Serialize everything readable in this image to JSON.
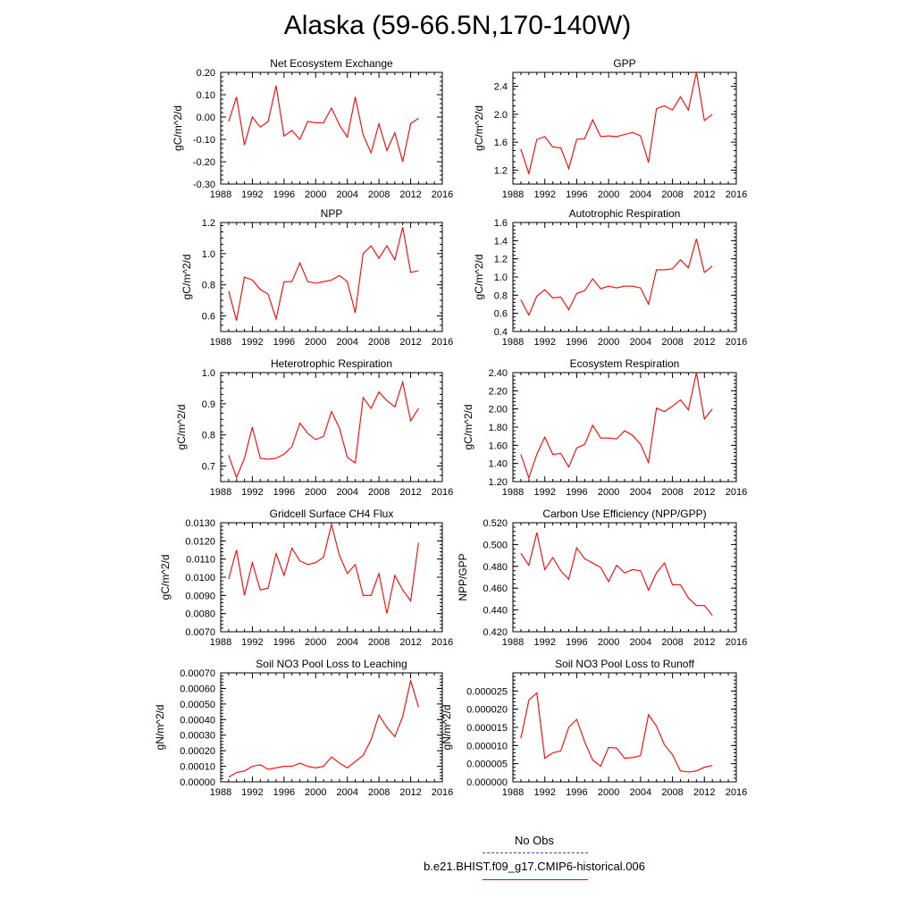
{
  "title": "Alaska (59-66.5N,170-140W)",
  "colors": {
    "series": "#ff0000",
    "obs": "#4444cc",
    "axis": "#000000"
  },
  "legend": {
    "obs_label": "No Obs",
    "model_label": "b.e21.BHIST.f09_g17.CMIP6-historical.006"
  },
  "chart_data": [
    {
      "type": "line",
      "title": "Net Ecosystem Exchange",
      "ylabel": "gC/m^2/d",
      "xlim": [
        1988,
        2016
      ],
      "xticks": [
        1988,
        1992,
        1996,
        2000,
        2004,
        2008,
        2012,
        2016
      ],
      "ylim": [
        -0.3,
        0.2
      ],
      "yticks": [
        "-0.30",
        "-0.20",
        "-0.10",
        "0.00",
        "0.10",
        "0.20"
      ],
      "x": [
        1989,
        1990,
        1991,
        1992,
        1993,
        1994,
        1995,
        1996,
        1997,
        1998,
        1999,
        2000,
        2001,
        2002,
        2003,
        2004,
        2005,
        2006,
        2007,
        2008,
        2009,
        2010,
        2011,
        2012,
        2013
      ],
      "values": [
        -0.02,
        0.09,
        -0.125,
        0.0,
        -0.045,
        -0.02,
        0.14,
        -0.085,
        -0.06,
        -0.1,
        -0.02,
        -0.025,
        -0.025,
        0.04,
        -0.035,
        -0.09,
        0.09,
        -0.08,
        -0.16,
        -0.03,
        -0.15,
        -0.07,
        -0.2,
        -0.03,
        -0.005
      ]
    },
    {
      "type": "line",
      "title": "GPP",
      "ylabel": "gC/m^2/d",
      "xlim": [
        1988,
        2016
      ],
      "xticks": [
        1988,
        1992,
        1996,
        2000,
        2004,
        2008,
        2012,
        2016
      ],
      "ylim": [
        1.0,
        2.6
      ],
      "yticks": [
        "1.2",
        "1.6",
        "2.0",
        "2.4"
      ],
      "x": [
        1989,
        1990,
        1991,
        1992,
        1993,
        1994,
        1995,
        1996,
        1997,
        1998,
        1999,
        2000,
        2001,
        2002,
        2003,
        2004,
        2005,
        2006,
        2007,
        2008,
        2009,
        2010,
        2011,
        2012,
        2013
      ],
      "values": [
        1.5,
        1.15,
        1.64,
        1.68,
        1.53,
        1.52,
        1.22,
        1.64,
        1.65,
        1.92,
        1.68,
        1.69,
        1.68,
        1.71,
        1.74,
        1.69,
        1.31,
        2.08,
        2.12,
        2.06,
        2.25,
        2.06,
        2.6,
        1.91,
        2.0
      ]
    },
    {
      "type": "line",
      "title": "NPP",
      "ylabel": "gC/m^2/d",
      "xlim": [
        1988,
        2016
      ],
      "xticks": [
        1988,
        1992,
        1996,
        2000,
        2004,
        2008,
        2012,
        2016
      ],
      "ylim": [
        0.5,
        1.2
      ],
      "yticks": [
        "0.6",
        "0.8",
        "1.0",
        "1.2"
      ],
      "x": [
        1989,
        1990,
        1991,
        1992,
        1993,
        1994,
        1995,
        1996,
        1997,
        1998,
        1999,
        2000,
        2001,
        2002,
        2003,
        2004,
        2005,
        2006,
        2007,
        2008,
        2009,
        2010,
        2011,
        2012,
        2013
      ],
      "values": [
        0.76,
        0.57,
        0.85,
        0.83,
        0.77,
        0.74,
        0.58,
        0.82,
        0.82,
        0.94,
        0.82,
        0.81,
        0.82,
        0.83,
        0.86,
        0.82,
        0.62,
        1.0,
        1.05,
        0.97,
        1.05,
        0.96,
        1.17,
        0.88,
        0.89
      ]
    },
    {
      "type": "line",
      "title": "Autotrophic Respiration",
      "ylabel": "gC/m^2/d",
      "xlim": [
        1988,
        2016
      ],
      "xticks": [
        1988,
        1992,
        1996,
        2000,
        2004,
        2008,
        2012,
        2016
      ],
      "ylim": [
        0.4,
        1.6
      ],
      "yticks": [
        "0.4",
        "0.6",
        "0.8",
        "1.0",
        "1.2",
        "1.4",
        "1.6"
      ],
      "x": [
        1989,
        1990,
        1991,
        1992,
        1993,
        1994,
        1995,
        1996,
        1997,
        1998,
        1999,
        2000,
        2001,
        2002,
        2003,
        2004,
        2005,
        2006,
        2007,
        2008,
        2009,
        2010,
        2011,
        2012,
        2013
      ],
      "values": [
        0.75,
        0.58,
        0.79,
        0.86,
        0.77,
        0.78,
        0.64,
        0.82,
        0.85,
        0.98,
        0.87,
        0.9,
        0.88,
        0.9,
        0.9,
        0.88,
        0.7,
        1.08,
        1.08,
        1.09,
        1.19,
        1.1,
        1.42,
        1.05,
        1.12
      ]
    },
    {
      "type": "line",
      "title": "Heterotrophic Respiration",
      "ylabel": "gC/m^2/d",
      "xlim": [
        1988,
        2016
      ],
      "xticks": [
        1988,
        1992,
        1996,
        2000,
        2004,
        2008,
        2012,
        2016
      ],
      "ylim": [
        0.65,
        1.0
      ],
      "yticks": [
        "0.7",
        "0.8",
        "0.9",
        "1.0"
      ],
      "x": [
        1989,
        1990,
        1991,
        1992,
        1993,
        1994,
        1995,
        1996,
        1997,
        1998,
        1999,
        2000,
        2001,
        2002,
        2003,
        2004,
        2005,
        2006,
        2007,
        2008,
        2009,
        2010,
        2011,
        2012,
        2013
      ],
      "values": [
        0.735,
        0.663,
        0.725,
        0.825,
        0.725,
        0.722,
        0.725,
        0.738,
        0.762,
        0.838,
        0.805,
        0.785,
        0.795,
        0.875,
        0.822,
        0.728,
        0.71,
        0.92,
        0.885,
        0.938,
        0.91,
        0.89,
        0.97,
        0.845,
        0.885
      ]
    },
    {
      "type": "line",
      "title": "Ecosystem Respiration",
      "ylabel": "gC/m^2/d",
      "xlim": [
        1988,
        2016
      ],
      "xticks": [
        1988,
        1992,
        1996,
        2000,
        2004,
        2008,
        2012,
        2016
      ],
      "ylim": [
        1.2,
        2.4
      ],
      "yticks": [
        "1.20",
        "1.40",
        "1.60",
        "1.80",
        "2.00",
        "2.20",
        "2.40"
      ],
      "x": [
        1989,
        1990,
        1991,
        1992,
        1993,
        1994,
        1995,
        1996,
        1997,
        1998,
        1999,
        2000,
        2001,
        2002,
        2003,
        2004,
        2005,
        2006,
        2007,
        2008,
        2009,
        2010,
        2011,
        2012,
        2013
      ],
      "values": [
        1.5,
        1.24,
        1.5,
        1.69,
        1.5,
        1.51,
        1.36,
        1.57,
        1.61,
        1.82,
        1.68,
        1.68,
        1.67,
        1.76,
        1.71,
        1.61,
        1.41,
        2.01,
        1.97,
        2.03,
        2.1,
        1.99,
        2.4,
        1.89,
        2.0
      ]
    },
    {
      "type": "line",
      "title": "Gridcell Surface CH4 Flux",
      "ylabel": "gC/m^2/d",
      "xlim": [
        1988,
        2016
      ],
      "xticks": [
        1988,
        1992,
        1996,
        2000,
        2004,
        2008,
        2012,
        2016
      ],
      "ylim": [
        0.007,
        0.013
      ],
      "yticks": [
        "0.0070",
        "0.0080",
        "0.0090",
        "0.0100",
        "0.0110",
        "0.0120",
        "0.0130"
      ],
      "x": [
        1989,
        1990,
        1991,
        1992,
        1993,
        1994,
        1995,
        1996,
        1997,
        1998,
        1999,
        2000,
        2001,
        2002,
        2003,
        2004,
        2005,
        2006,
        2007,
        2008,
        2009,
        2010,
        2011,
        2012,
        2013
      ],
      "values": [
        0.0099,
        0.0115,
        0.009,
        0.0108,
        0.0093,
        0.0094,
        0.0113,
        0.0101,
        0.0116,
        0.0109,
        0.0107,
        0.0108,
        0.0111,
        0.0129,
        0.0112,
        0.0102,
        0.0107,
        0.009,
        0.009,
        0.0102,
        0.008,
        0.0101,
        0.0093,
        0.0087,
        0.0119
      ]
    },
    {
      "type": "line",
      "title": "Carbon Use Efficiency (NPP/GPP)",
      "ylabel": "NPP/GPP",
      "xlim": [
        1988,
        2016
      ],
      "xticks": [
        1988,
        1992,
        1996,
        2000,
        2004,
        2008,
        2012,
        2016
      ],
      "ylim": [
        0.42,
        0.52
      ],
      "yticks": [
        "0.420",
        "0.440",
        "0.460",
        "0.480",
        "0.500",
        "0.520"
      ],
      "x": [
        1989,
        1990,
        1991,
        1992,
        1993,
        1994,
        1995,
        1996,
        1997,
        1998,
        1999,
        2000,
        2001,
        2002,
        2003,
        2004,
        2005,
        2006,
        2007,
        2008,
        2009,
        2010,
        2011,
        2012,
        2013
      ],
      "values": [
        0.492,
        0.481,
        0.511,
        0.477,
        0.488,
        0.476,
        0.468,
        0.497,
        0.487,
        0.483,
        0.479,
        0.466,
        0.481,
        0.474,
        0.477,
        0.476,
        0.458,
        0.474,
        0.483,
        0.463,
        0.463,
        0.451,
        0.444,
        0.444,
        0.435
      ]
    },
    {
      "type": "line",
      "title": "Soil NO3 Pool Loss to Leaching",
      "ylabel": "gN/m^2/d",
      "xlim": [
        1988,
        2016
      ],
      "xticks": [
        1988,
        1992,
        1996,
        2000,
        2004,
        2008,
        2012,
        2016
      ],
      "ylim": [
        0.0,
        0.0007
      ],
      "yticks": [
        "0.00000",
        "0.00010",
        "0.00020",
        "0.00030",
        "0.00040",
        "0.00050",
        "0.00060",
        "0.00070"
      ],
      "x": [
        1989,
        1990,
        1991,
        1992,
        1993,
        1994,
        1995,
        1996,
        1997,
        1998,
        1999,
        2000,
        2001,
        2002,
        2003,
        2004,
        2005,
        2006,
        2007,
        2008,
        2009,
        2010,
        2011,
        2012,
        2013
      ],
      "values": [
        3e-05,
        6e-05,
        7e-05,
        0.0001,
        0.00011,
        8e-05,
        9e-05,
        0.0001,
        0.0001,
        0.00012,
        0.0001,
        9e-05,
        0.0001,
        0.00016,
        0.00012,
        9e-05,
        0.00013,
        0.00017,
        0.00027,
        0.00043,
        0.00035,
        0.00029,
        0.00042,
        0.00065,
        0.00048
      ]
    },
    {
      "type": "line",
      "title": "Soil NO3 Pool Loss to Runoff",
      "ylabel": "gN/m^2/d",
      "xlim": [
        1988,
        2016
      ],
      "xticks": [
        1988,
        1992,
        1996,
        2000,
        2004,
        2008,
        2012,
        2016
      ],
      "ylim": [
        0.0,
        3e-05
      ],
      "yticks": [
        "0.000000",
        "0.000005",
        "0.000010",
        "0.000015",
        "0.000020",
        "0.000025"
      ],
      "x": [
        1989,
        1990,
        1991,
        1992,
        1993,
        1994,
        1995,
        1996,
        1997,
        1998,
        1999,
        2000,
        2001,
        2002,
        2003,
        2004,
        2005,
        2006,
        2007,
        2008,
        2009,
        2010,
        2011,
        2012,
        2013
      ],
      "values": [
        1.2e-05,
        2.25e-05,
        2.45e-05,
        6.5e-06,
        8e-06,
        8.5e-06,
        1.5e-05,
        1.72e-05,
        1.1e-05,
        6e-06,
        4.3e-06,
        9.5e-06,
        9.3e-06,
        6.5e-06,
        6.7e-06,
        7.2e-06,
        1.85e-05,
        1.53e-05,
        1.02e-05,
        7.5e-06,
        3e-06,
        2.7e-06,
        3e-06,
        4e-06,
        4.5e-06
      ]
    }
  ]
}
